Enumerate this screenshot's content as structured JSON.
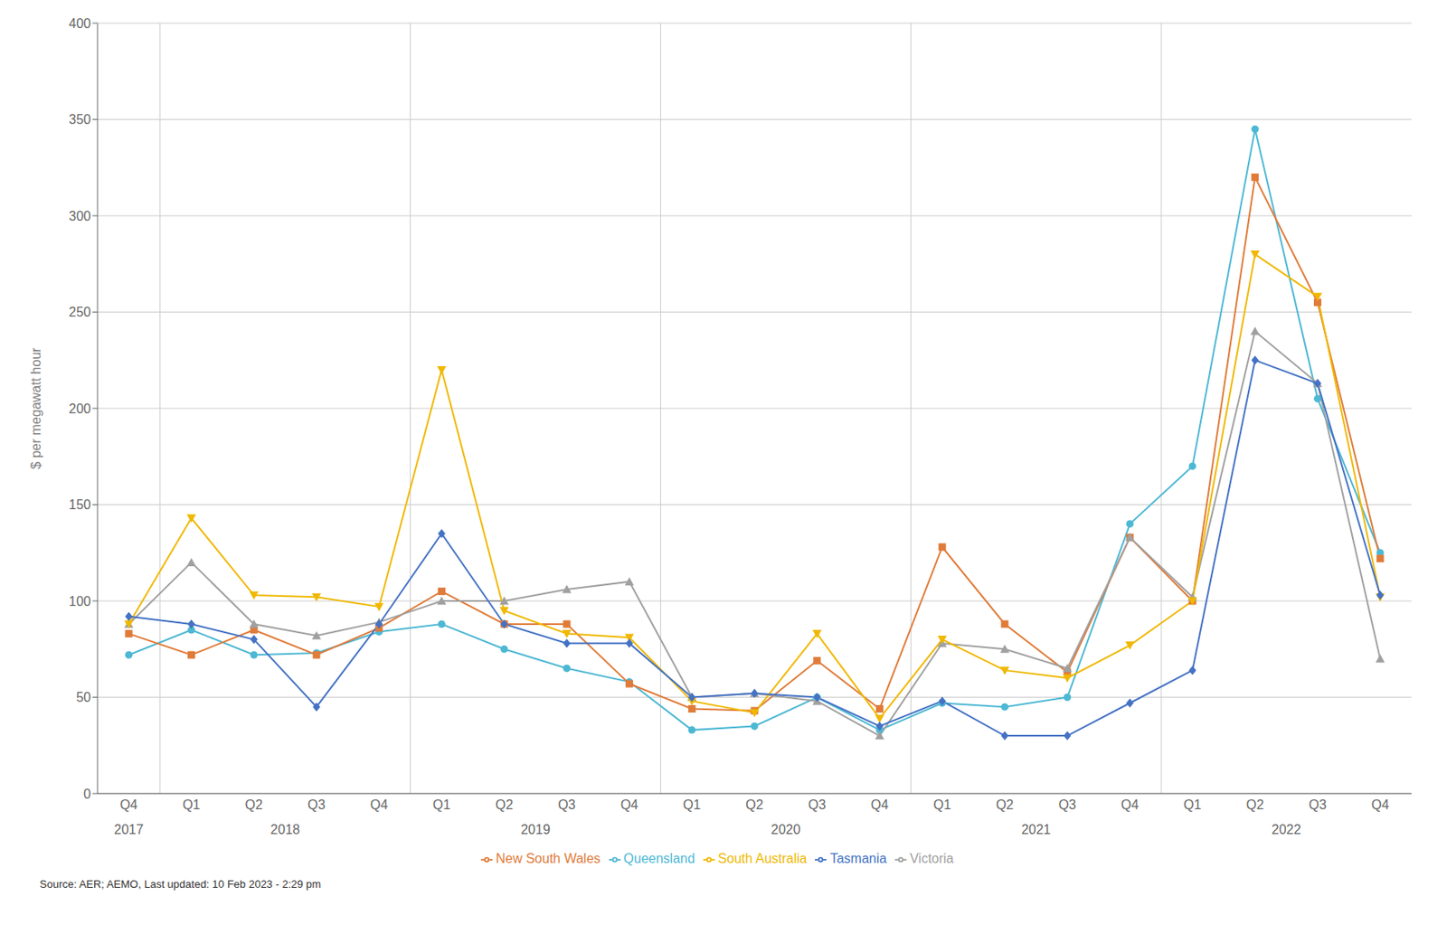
{
  "chart_data": {
    "type": "line",
    "y_label": "$ per megawatt hour",
    "categories": [
      "Q4",
      "Q1",
      "Q2",
      "Q3",
      "Q4",
      "Q1",
      "Q2",
      "Q3",
      "Q4",
      "Q1",
      "Q2",
      "Q3",
      "Q4",
      "Q1",
      "Q2",
      "Q3",
      "Q4",
      "Q1",
      "Q2",
      "Q3",
      "Q4"
    ],
    "category_groups": [
      {
        "label": "2017",
        "count": 1
      },
      {
        "label": "2018",
        "count": 4
      },
      {
        "label": "2019",
        "count": 4
      },
      {
        "label": "2020",
        "count": 4
      },
      {
        "label": "2021",
        "count": 4
      },
      {
        "label": "2022",
        "count": 4
      }
    ],
    "series": [
      {
        "name": "Queensland",
        "color": "#4db8d4",
        "marker": "circle",
        "values": [
          72,
          85,
          72,
          73,
          84,
          88,
          75,
          65,
          58,
          33,
          35,
          50,
          33,
          47,
          45,
          50,
          140,
          170,
          345,
          205,
          125
        ]
      },
      {
        "name": "New South Wales",
        "color": "#e07b39",
        "marker": "square",
        "values": [
          83,
          72,
          85,
          72,
          86,
          105,
          88,
          88,
          57,
          44,
          43,
          69,
          44,
          128,
          88,
          63,
          133,
          100,
          320,
          255,
          122
        ]
      },
      {
        "name": "Victoria",
        "color": "#a0a0a0",
        "marker": "triangle-up",
        "values": [
          88,
          120,
          88,
          82,
          89,
          100,
          100,
          106,
          110,
          50,
          52,
          48,
          30,
          78,
          75,
          65,
          133,
          102,
          240,
          213,
          70
        ]
      },
      {
        "name": "South Australia",
        "color": "#f0b800",
        "marker": "triangle-down",
        "values": [
          88,
          143,
          103,
          102,
          97,
          220,
          95,
          83,
          81,
          48,
          42,
          83,
          39,
          80,
          64,
          60,
          77,
          100,
          280,
          258,
          102
        ]
      },
      {
        "name": "Tasmania",
        "color": "#4472c4",
        "marker": "diamond",
        "values": [
          92,
          88,
          80,
          45,
          88,
          135,
          88,
          78,
          78,
          50,
          52,
          50,
          35,
          48,
          30,
          30,
          47,
          64,
          225,
          213,
          103
        ]
      }
    ],
    "ylim": [
      0,
      400
    ],
    "yticks": [
      0,
      50,
      100,
      150,
      200,
      250,
      300,
      350,
      400
    ],
    "grid": "y",
    "legend": "bottom",
    "annotations": [
      "Source: AER; AEMO, Last updated: 10 Feb 2023 - 2:29 pm"
    ]
  }
}
